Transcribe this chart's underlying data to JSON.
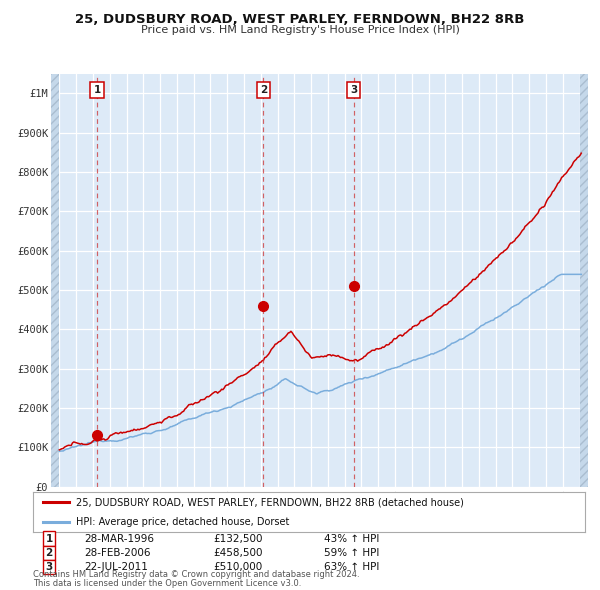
{
  "title1": "25, DUDSBURY ROAD, WEST PARLEY, FERNDOWN, BH22 8RB",
  "title2": "Price paid vs. HM Land Registry's House Price Index (HPI)",
  "hpi_label": "HPI: Average price, detached house, Dorset",
  "property_label": "25, DUDSBURY ROAD, WEST PARLEY, FERNDOWN, BH22 8RB (detached house)",
  "property_color": "#cc0000",
  "hpi_color": "#7aaddc",
  "background_color": "#ddeaf7",
  "hatch_color": "#c5d8ea",
  "grid_color": "#ffffff",
  "sale_points": [
    {
      "date_num": 1996.24,
      "price": 132500,
      "label": "1",
      "date_str": "28-MAR-1996",
      "pct": "43%"
    },
    {
      "date_num": 2006.16,
      "price": 458500,
      "label": "2",
      "date_str": "28-FEB-2006",
      "pct": "59%"
    },
    {
      "date_num": 2011.55,
      "price": 510000,
      "label": "3",
      "date_str": "22-JUL-2011",
      "pct": "63%"
    }
  ],
  "footnote1": "Contains HM Land Registry data © Crown copyright and database right 2024.",
  "footnote2": "This data is licensed under the Open Government Licence v3.0.",
  "ylim": [
    0,
    1050000
  ],
  "xlim_start": 1993.5,
  "xlim_end": 2025.5
}
